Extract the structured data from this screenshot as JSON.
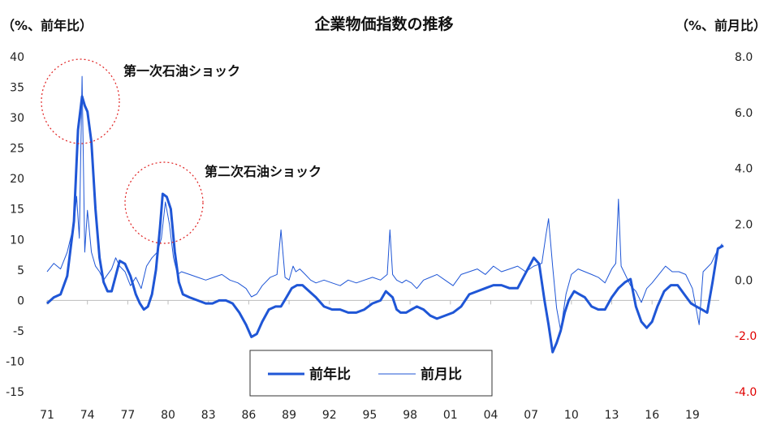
{
  "chart_data": {
    "type": "line",
    "title": "企業物価指数の推移",
    "y_left_unit": "（%、前年比）",
    "y_right_unit": "（%、前月比）",
    "x_range": [
      1971,
      2021
    ],
    "x_tick_labels": [
      "71",
      "74",
      "77",
      "80",
      "83",
      "86",
      "89",
      "92",
      "95",
      "98",
      "01",
      "04",
      "07",
      "10",
      "13",
      "16",
      "19"
    ],
    "x_tick_years": [
      1971,
      1974,
      1977,
      1980,
      1983,
      1986,
      1989,
      1992,
      1995,
      1998,
      2001,
      2004,
      2007,
      2010,
      2013,
      2016,
      2019
    ],
    "y_left": {
      "min": -15,
      "max": 40,
      "ticks": [
        "40",
        "35",
        "30",
        "25",
        "20",
        "15",
        "10",
        "5",
        "0",
        "-5",
        "-10",
        "-15"
      ]
    },
    "y_right": {
      "min": -4.0,
      "max": 8.0,
      "ticks": [
        "8.0",
        "6.0",
        "4.0",
        "2.0",
        "0.0",
        "-2.0",
        "-4.0"
      ],
      "negative_color": "#e00000"
    },
    "annotations": [
      "第一次石油ショック",
      "第二次石油ショック"
    ],
    "legend": {
      "position": "bottom-center",
      "entries": [
        "前年比",
        "前月比"
      ]
    },
    "series": [
      {
        "name": "前年比",
        "axis": "left",
        "color": "#1f56d6",
        "x": [
          1971.0,
          1971.5,
          1972.0,
          1972.5,
          1973.0,
          1973.3,
          1973.6,
          1973.8,
          1974.0,
          1974.3,
          1974.6,
          1974.9,
          1975.2,
          1975.5,
          1975.8,
          1976.1,
          1976.4,
          1976.8,
          1977.2,
          1977.6,
          1977.9,
          1978.2,
          1978.5,
          1978.8,
          1979.1,
          1979.4,
          1979.6,
          1979.9,
          1980.2,
          1980.5,
          1980.8,
          1981.1,
          1981.6,
          1982.2,
          1982.8,
          1983.3,
          1983.8,
          1984.3,
          1984.8,
          1985.3,
          1985.8,
          1986.2,
          1986.6,
          1987.0,
          1987.5,
          1988.0,
          1988.4,
          1988.8,
          1989.2,
          1989.6,
          1990.0,
          1990.5,
          1991.0,
          1991.6,
          1992.2,
          1992.8,
          1993.4,
          1994.0,
          1994.6,
          1995.2,
          1995.8,
          1996.2,
          1996.7,
          1997.0,
          1997.3,
          1997.7,
          1998.1,
          1998.5,
          1999.0,
          1999.5,
          2000.0,
          2000.6,
          2001.2,
          2001.8,
          2002.4,
          2003.0,
          2003.6,
          2004.2,
          2004.8,
          2005.4,
          2006.0,
          2006.6,
          2007.2,
          2007.6,
          2008.0,
          2008.3,
          2008.6,
          2008.9,
          2009.2,
          2009.5,
          2009.8,
          2010.2,
          2010.6,
          2011.0,
          2011.5,
          2012.0,
          2012.5,
          2013.0,
          2013.5,
          2014.0,
          2014.4,
          2014.8,
          2015.2,
          2015.6,
          2016.0,
          2016.4,
          2016.9,
          2017.4,
          2017.9,
          2018.4,
          2018.9,
          2019.3,
          2019.7,
          2020.1,
          2020.5,
          2020.9,
          2021.3
        ],
        "values": [
          -0.5,
          0.5,
          1.0,
          4.0,
          13.0,
          28.0,
          33.5,
          32.0,
          31.0,
          26.0,
          15.0,
          7.0,
          3.0,
          1.5,
          1.5,
          4.0,
          6.5,
          6.0,
          4.0,
          1.0,
          -0.5,
          -1.5,
          -1.0,
          1.0,
          5.0,
          12.0,
          17.5,
          17.0,
          15.0,
          8.0,
          3.0,
          1.0,
          0.5,
          0.0,
          -0.5,
          -0.5,
          0.0,
          0.0,
          -0.5,
          -2.0,
          -4.0,
          -6.0,
          -5.5,
          -3.5,
          -1.5,
          -1.0,
          -1.0,
          0.5,
          2.0,
          2.5,
          2.5,
          1.5,
          0.5,
          -1.0,
          -1.5,
          -1.5,
          -2.0,
          -2.0,
          -1.5,
          -0.5,
          0.0,
          1.5,
          0.5,
          -1.5,
          -2.0,
          -2.0,
          -1.5,
          -1.0,
          -1.5,
          -2.5,
          -3.0,
          -2.5,
          -2.0,
          -1.0,
          1.0,
          1.5,
          2.0,
          2.5,
          2.5,
          2.0,
          2.0,
          4.5,
          7.0,
          6.0,
          0.0,
          -4.0,
          -8.5,
          -7.0,
          -5.0,
          -2.0,
          0.0,
          1.5,
          1.0,
          0.5,
          -1.0,
          -1.5,
          -1.5,
          0.5,
          2.0,
          3.0,
          3.5,
          -1.0,
          -3.5,
          -4.5,
          -3.5,
          -1.0,
          1.5,
          2.5,
          2.5,
          1.0,
          -0.5,
          -1.0,
          -1.5,
          -2.0,
          3.0,
          8.5,
          9.0
        ]
      },
      {
        "name": "前月比",
        "axis": "right",
        "color": "#1f56d6",
        "x": [
          1971.0,
          1971.5,
          1972.0,
          1972.5,
          1973.0,
          1973.2,
          1973.4,
          1973.6,
          1973.8,
          1974.0,
          1974.3,
          1974.6,
          1974.9,
          1975.2,
          1975.5,
          1975.8,
          1976.1,
          1976.4,
          1976.8,
          1977.2,
          1977.6,
          1978.0,
          1978.4,
          1978.8,
          1979.2,
          1979.5,
          1979.8,
          1980.1,
          1980.4,
          1980.7,
          1981.0,
          1981.6,
          1982.2,
          1982.8,
          1983.4,
          1984.0,
          1984.6,
          1985.2,
          1985.8,
          1986.2,
          1986.6,
          1987.0,
          1987.6,
          1988.1,
          1988.4,
          1988.7,
          1989.0,
          1989.3,
          1989.5,
          1989.8,
          1990.2,
          1990.6,
          1991.0,
          1991.6,
          1992.2,
          1992.8,
          1993.4,
          1994.0,
          1994.6,
          1995.2,
          1995.8,
          1996.3,
          1996.5,
          1996.7,
          1997.0,
          1997.4,
          1997.7,
          1998.1,
          1998.5,
          1999.0,
          1999.5,
          2000.0,
          2000.6,
          2001.2,
          2001.8,
          2002.4,
          2003.0,
          2003.6,
          2004.2,
          2004.8,
          2005.4,
          2006.0,
          2006.6,
          2007.2,
          2007.8,
          2008.1,
          2008.3,
          2008.6,
          2008.9,
          2009.2,
          2009.6,
          2010.0,
          2010.5,
          2011.0,
          2011.5,
          2012.0,
          2012.5,
          2013.0,
          2013.3,
          2013.5,
          2013.7,
          2014.0,
          2014.4,
          2014.8,
          2015.2,
          2015.6,
          2016.0,
          2016.5,
          2017.0,
          2017.5,
          2018.0,
          2018.5,
          2019.0,
          2019.5,
          2019.8,
          2020.0,
          2020.4,
          2020.8,
          2021.2
        ],
        "values": [
          0.3,
          0.6,
          0.4,
          1.0,
          2.0,
          3.0,
          1.5,
          7.3,
          1.0,
          2.5,
          1.0,
          0.5,
          0.3,
          0.0,
          0.2,
          0.4,
          0.8,
          0.5,
          0.3,
          -0.2,
          0.1,
          -0.3,
          0.5,
          0.8,
          1.0,
          1.5,
          2.8,
          2.0,
          0.8,
          0.2,
          0.3,
          0.2,
          0.1,
          0.0,
          0.1,
          0.2,
          0.0,
          -0.1,
          -0.3,
          -0.6,
          -0.5,
          -0.2,
          0.1,
          0.2,
          1.8,
          0.1,
          0.0,
          0.5,
          0.3,
          0.4,
          0.2,
          0.0,
          -0.1,
          0.0,
          -0.1,
          -0.2,
          0.0,
          -0.1,
          0.0,
          0.1,
          0.0,
          0.2,
          1.8,
          0.2,
          0.0,
          -0.1,
          0.0,
          -0.1,
          -0.3,
          0.0,
          0.1,
          0.2,
          0.0,
          -0.2,
          0.2,
          0.3,
          0.4,
          0.2,
          0.5,
          0.3,
          0.4,
          0.5,
          0.3,
          0.5,
          0.6,
          1.6,
          2.2,
          0.5,
          -1.0,
          -1.8,
          -0.5,
          0.2,
          0.4,
          0.3,
          0.2,
          0.1,
          -0.1,
          0.4,
          0.6,
          2.9,
          0.5,
          0.2,
          -0.2,
          -0.4,
          -0.8,
          -0.3,
          -0.1,
          0.2,
          0.5,
          0.3,
          0.3,
          0.2,
          -0.3,
          -1.6,
          0.3,
          0.4,
          0.6,
          1.0,
          1.3
        ]
      }
    ]
  }
}
